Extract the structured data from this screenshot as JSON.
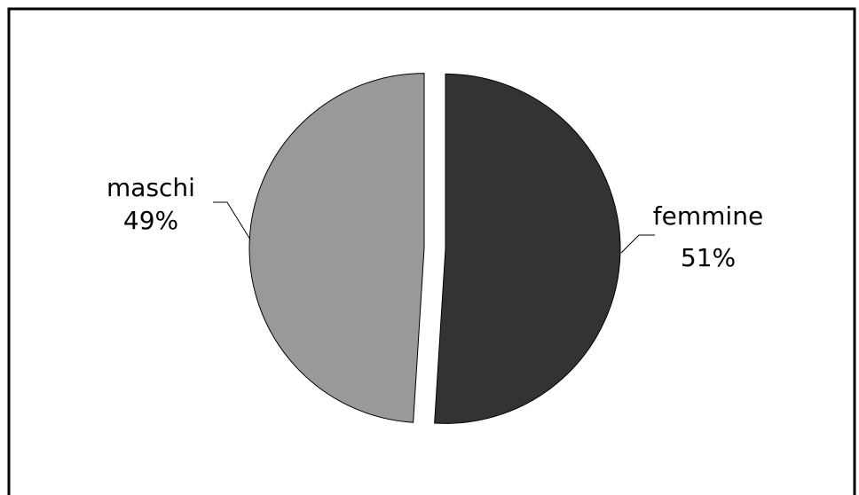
{
  "chart_data": {
    "type": "pie",
    "categories": [
      "femmine",
      "maschi"
    ],
    "values": [
      51,
      49
    ],
    "value_labels": [
      "51%",
      "49%"
    ],
    "colors": [
      "#333333",
      "#999999"
    ]
  }
}
